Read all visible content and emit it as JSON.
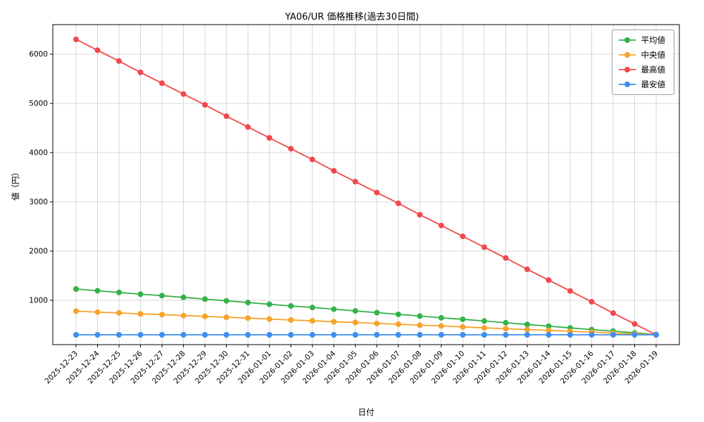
{
  "chart_data": {
    "type": "line",
    "title": "YA06/UR 価格推移(過去30日間)",
    "xlabel": "日付",
    "ylabel": "値（円）",
    "ylim": [
      100,
      6600
    ],
    "yticks": [
      1000,
      2000,
      3000,
      4000,
      5000,
      6000
    ],
    "grid": true,
    "legend_position": "upper-right",
    "categories": [
      "2025-12-23",
      "2025-12-24",
      "2025-12-25",
      "2025-12-26",
      "2025-12-27",
      "2025-12-28",
      "2025-12-29",
      "2025-12-30",
      "2025-12-31",
      "2026-01-01",
      "2026-01-02",
      "2026-01-03",
      "2026-01-04",
      "2026-01-05",
      "2026-01-06",
      "2026-01-07",
      "2026-01-08",
      "2026-01-09",
      "2026-01-10",
      "2026-01-11",
      "2026-01-12",
      "2026-01-13",
      "2026-01-14",
      "2026-01-15",
      "2026-01-16",
      "2026-01-17",
      "2026-01-18",
      "2026-01-19"
    ],
    "series": [
      {
        "id": "average",
        "name": "平均値",
        "color": "#33b249",
        "values": [
          1230,
          1195,
          1160,
          1125,
          1095,
          1060,
          1025,
          990,
          955,
          920,
          885,
          855,
          820,
          785,
          750,
          715,
          680,
          645,
          615,
          580,
          545,
          510,
          475,
          440,
          405,
          375,
          340,
          305
        ]
      },
      {
        "id": "median",
        "name": "中央値",
        "color": "#f7a229",
        "values": [
          780,
          760,
          745,
          725,
          710,
          690,
          675,
          655,
          640,
          620,
          600,
          585,
          565,
          550,
          530,
          515,
          495,
          480,
          460,
          440,
          425,
          405,
          390,
          370,
          355,
          335,
          320,
          300
        ]
      },
      {
        "id": "max",
        "name": "最高値",
        "color": "#f2484b",
        "values": [
          6300,
          6080,
          5860,
          5630,
          5410,
          5190,
          4970,
          4740,
          4520,
          4300,
          4080,
          3860,
          3630,
          3410,
          3190,
          2970,
          2740,
          2520,
          2300,
          2080,
          1860,
          1630,
          1410,
          1190,
          970,
          740,
          520,
          300
        ]
      },
      {
        "id": "min",
        "name": "最安値",
        "color": "#3e8df2",
        "values": [
          300,
          300,
          300,
          300,
          300,
          300,
          300,
          300,
          300,
          300,
          300,
          300,
          300,
          300,
          300,
          300,
          300,
          300,
          300,
          300,
          300,
          300,
          300,
          300,
          300,
          300,
          300,
          300
        ]
      }
    ]
  }
}
